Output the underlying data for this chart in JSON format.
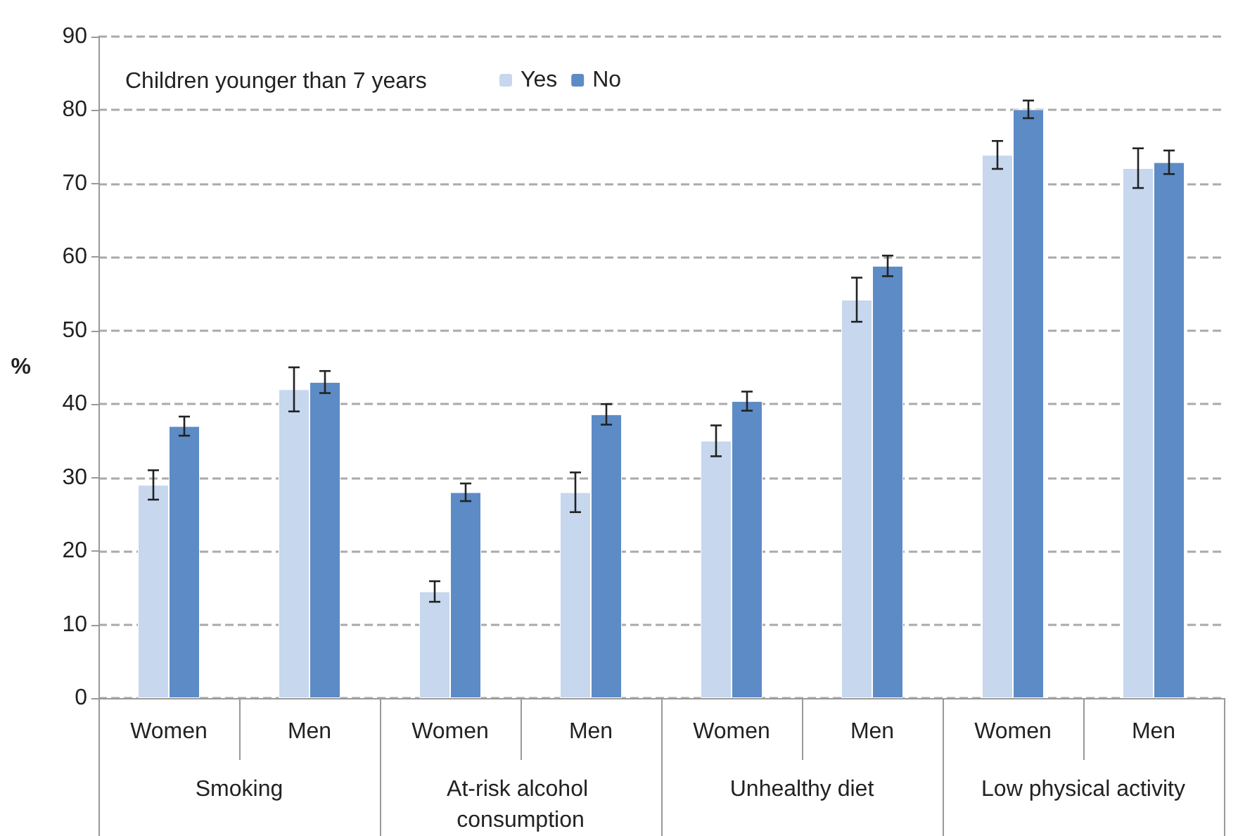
{
  "chart_data": {
    "type": "bar",
    "categories": [
      "Women",
      "Men",
      "Women",
      "Men",
      "Women",
      "Men",
      "Women",
      "Men"
    ],
    "annotations": [
      "Smoking",
      "At-risk alcohol consumption",
      "Unhealthy diet",
      "Low physical activity"
    ],
    "ylabel": "%",
    "legend_title": "Children younger than 7 years",
    "series": [
      {
        "name": "Yes",
        "color": "#c6d7ee",
        "values": [
          29,
          42,
          14.5,
          28,
          35,
          54.2,
          73.9,
          72.1
        ],
        "errors": [
          2,
          3,
          1.4,
          2.7,
          2.1,
          3,
          1.9,
          2.7
        ]
      },
      {
        "name": "No",
        "color": "#5d8bc5",
        "values": [
          37,
          43,
          28,
          38.6,
          40.4,
          58.8,
          80.1,
          72.9
        ],
        "errors": [
          1.3,
          1.5,
          1.2,
          1.4,
          1.3,
          1.4,
          1.2,
          1.6
        ]
      }
    ],
    "ylim": [
      0,
      90
    ],
    "yticks": [
      0,
      10,
      20,
      30,
      40,
      50,
      60,
      70,
      80,
      90
    ],
    "grid": "y",
    "legend": "top left"
  }
}
